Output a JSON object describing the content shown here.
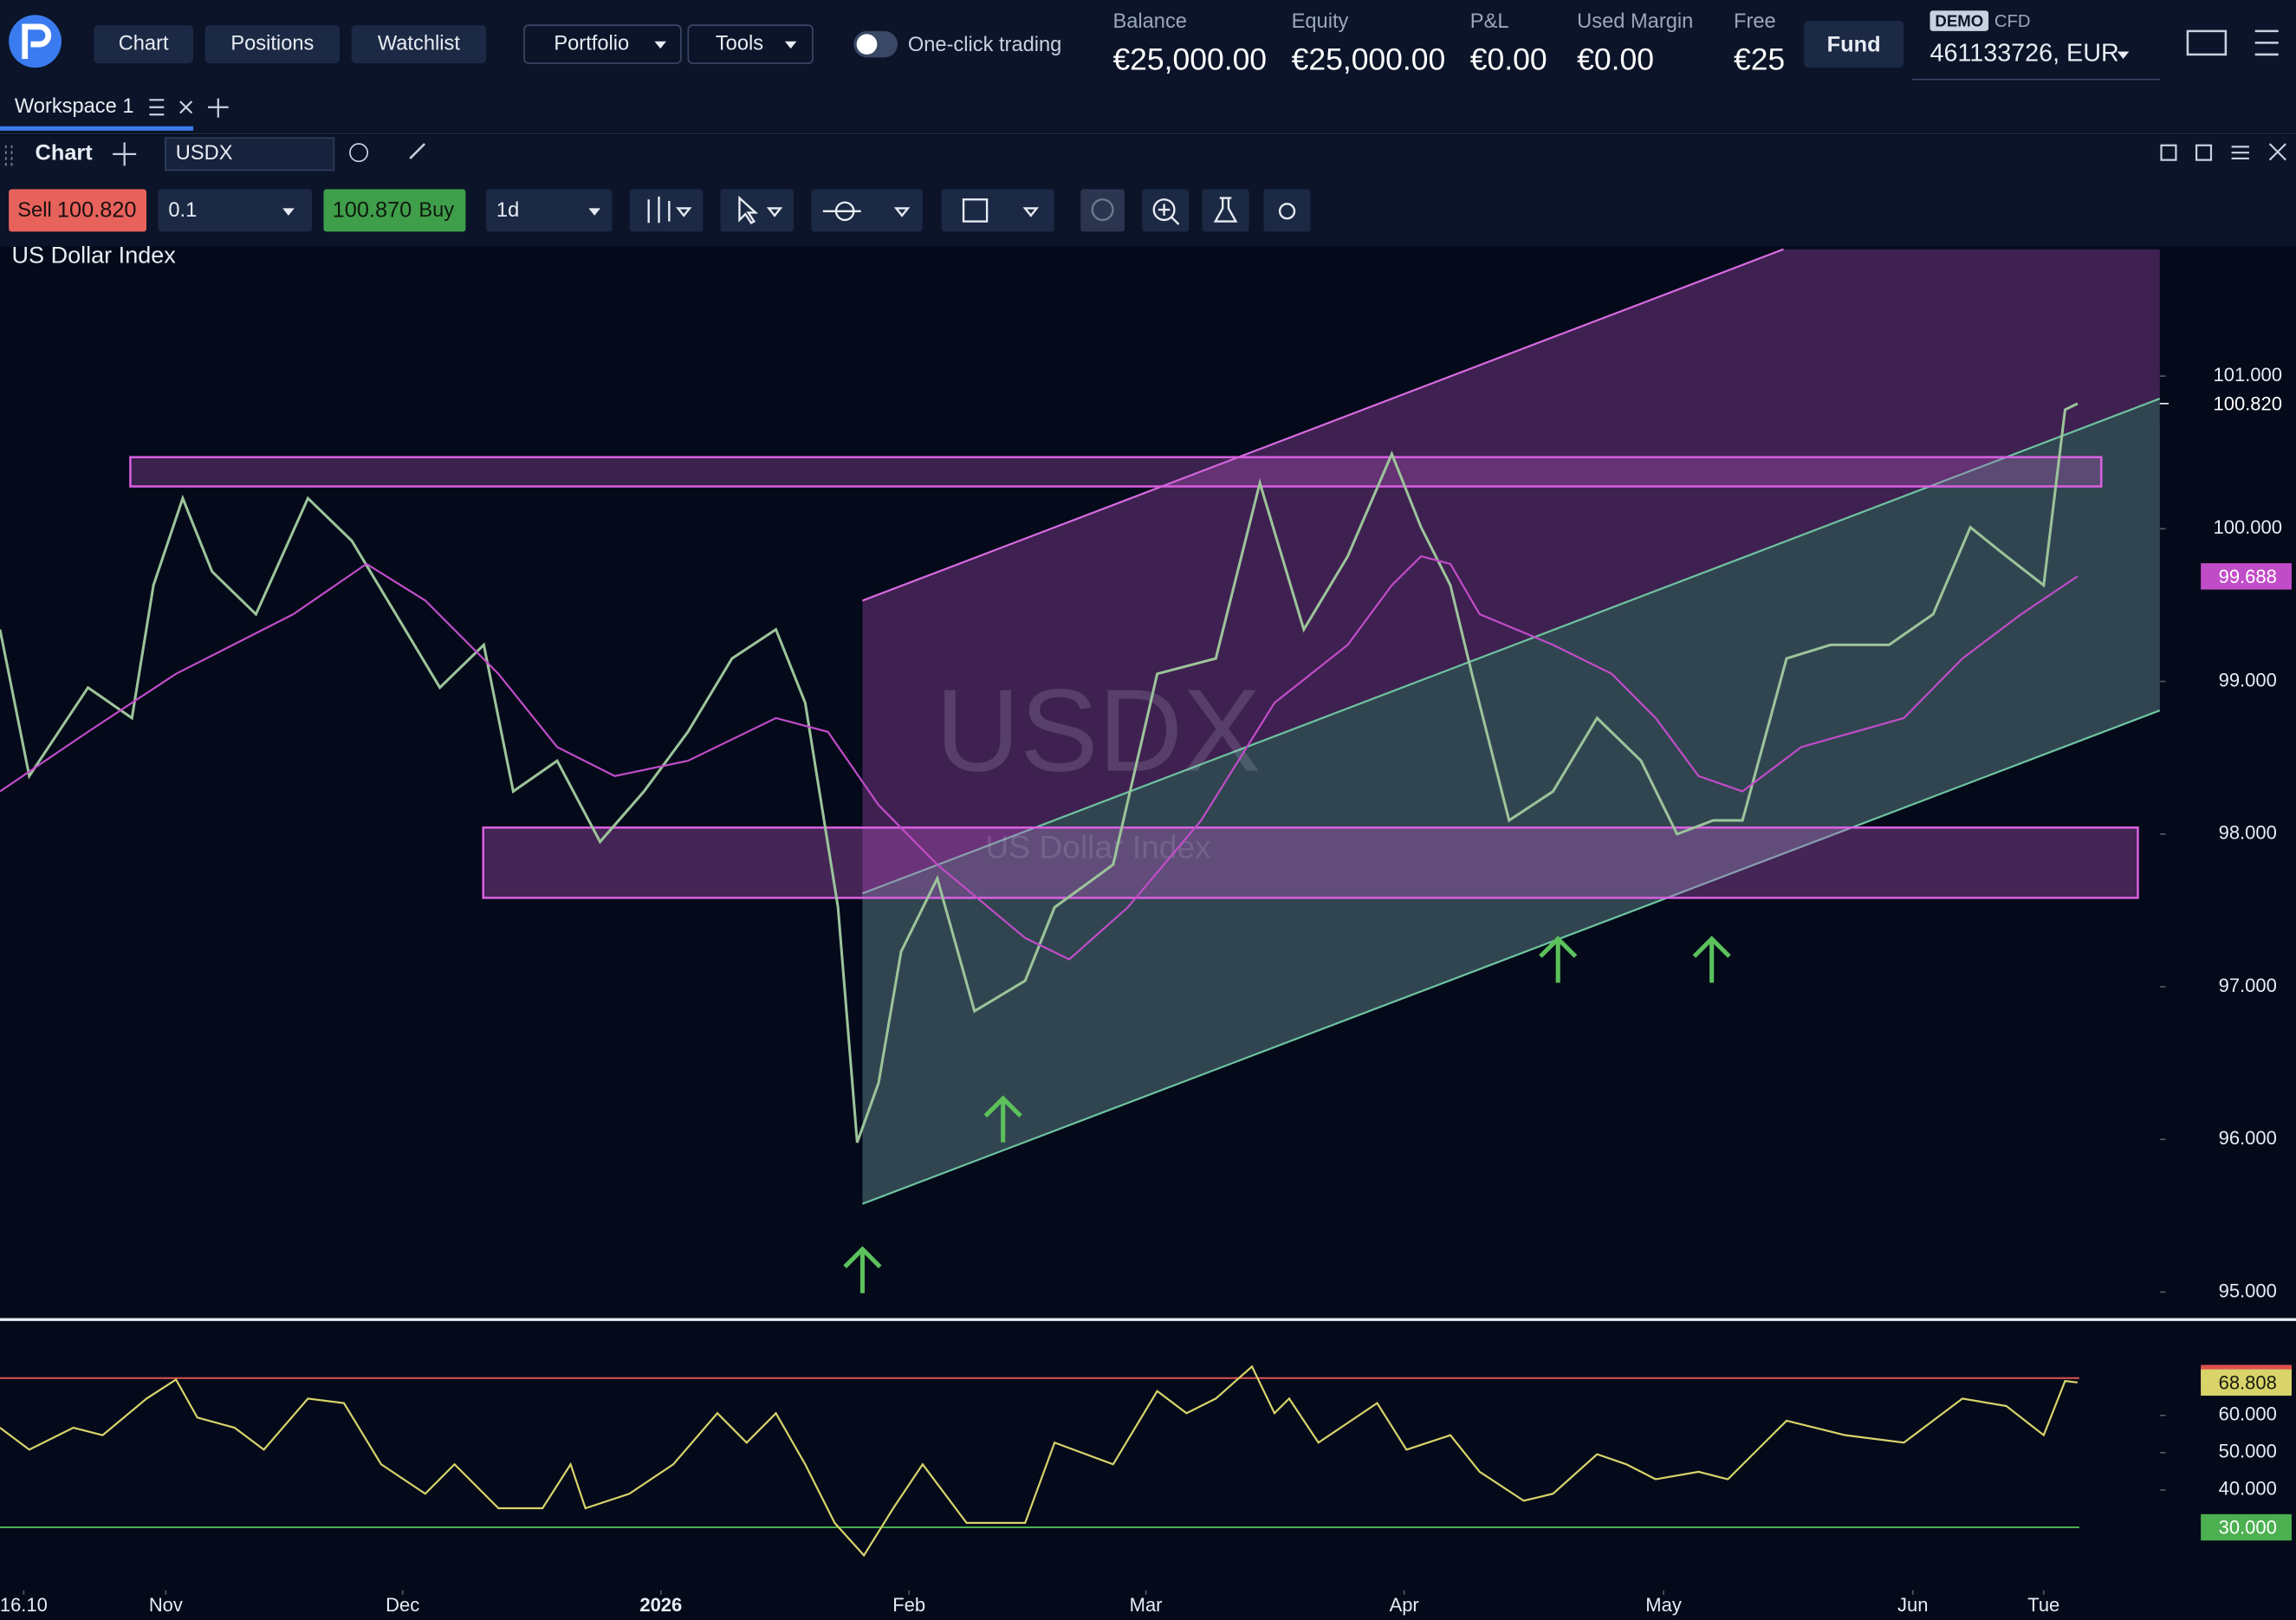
{
  "header": {
    "nav": [
      "Chart",
      "Positions",
      "Watchlist"
    ],
    "menus": [
      "Portfolio",
      "Tools"
    ],
    "toggle": "One-click trading",
    "stats": [
      {
        "label": "Balance",
        "value": "€25,000.00"
      },
      {
        "label": "Equity",
        "value": "€25,000.00"
      },
      {
        "label": "P&L",
        "value": "€0.00"
      },
      {
        "label": "Used Margin",
        "value": "€0.00"
      },
      {
        "label": "Free",
        "value": "€25"
      }
    ],
    "fund": "Fund",
    "badge": "DEMO",
    "account_type": "CFD",
    "account": "461133726, EUR"
  },
  "workspace": {
    "tab": "Workspace 1"
  },
  "panel": {
    "title": "Chart",
    "symbol": "USDX"
  },
  "toolbar": {
    "sell": "Sell",
    "sell_price": "100.820",
    "quantity": "0.1",
    "buy_price": "100.870",
    "buy": "Buy",
    "interval": "1d"
  },
  "chart_data": [
    {
      "type": "line",
      "title": "US Dollar Index",
      "watermark": "USDX",
      "xlim": [
        0,
        191.5
      ],
      "ylim": [
        94.83,
        101.85
      ],
      "yticks": [
        {
          "value": 95,
          "label": "95.000"
        },
        {
          "value": 96,
          "label": "96.000"
        },
        {
          "value": 97,
          "label": "97.000"
        },
        {
          "value": 98,
          "label": "98.000"
        },
        {
          "value": 99,
          "label": "99.000"
        },
        {
          "value": 100,
          "label": "100.000"
        },
        {
          "value": 101,
          "label": "101.000"
        }
      ],
      "series": [
        {
          "color": "#9cc49a",
          "last_label": "100.820",
          "x": [
            0,
            2.6,
            7.8,
            11.7,
            13.6,
            16.2,
            18.8,
            22.7,
            27.3,
            31.2,
            35.1,
            39,
            42.9,
            45.5,
            49.4,
            53.2,
            57.1,
            61,
            64.9,
            68.8,
            71.4,
            74.3,
            76,
            77.9,
            79.9,
            83.1,
            86.4,
            90.9,
            93.5,
            98.7,
            102.6,
            107.8,
            111.7,
            115.6,
            119.5,
            123.4,
            126,
            128.6,
            130.5,
            133.8,
            137.7,
            141.6,
            145.5,
            148.7,
            151.9,
            154.5,
            158.4,
            162.3,
            167.5,
            171.4,
            174.7,
            177.9,
            181.2,
            183.1,
            184.2
          ],
          "values": [
            99.34,
            98.38,
            98.96,
            98.76,
            99.63,
            100.2,
            99.72,
            99.44,
            100.2,
            99.92,
            99.44,
            98.96,
            99.24,
            98.28,
            98.48,
            97.95,
            98.28,
            98.67,
            99.15,
            99.34,
            98.86,
            97.52,
            95.98,
            96.37,
            97.23,
            97.71,
            96.84,
            97.04,
            97.52,
            97.8,
            99.05,
            99.15,
            100.3,
            99.34,
            99.82,
            100.49,
            100.01,
            99.63,
            99.05,
            98.09,
            98.28,
            98.76,
            98.48,
            98,
            98.09,
            98.09,
            99.15,
            99.24,
            99.24,
            99.44,
            100.01,
            99.82,
            99.63,
            100.78,
            100.82
          ]
        },
        {
          "color": "#c14cc8",
          "last_label": "99.688",
          "x": [
            0,
            7.8,
            15.6,
            26,
            32.5,
            37.7,
            44.2,
            49.4,
            54.5,
            61,
            68.8,
            73.4,
            77.9,
            83.1,
            90.9,
            94.8,
            100,
            106.5,
            113,
            119.5,
            123.4,
            126,
            128.6,
            131.2,
            137.7,
            142.9,
            146.8,
            150.6,
            154.5,
            159.7,
            168.8,
            174,
            179.2,
            184.2
          ],
          "values": [
            98.28,
            98.67,
            99.05,
            99.44,
            99.77,
            99.53,
            99.05,
            98.57,
            98.38,
            98.48,
            98.76,
            98.67,
            98.19,
            97.8,
            97.32,
            97.18,
            97.52,
            98.09,
            98.86,
            99.24,
            99.63,
            99.82,
            99.77,
            99.44,
            99.24,
            99.05,
            98.76,
            98.38,
            98.28,
            98.57,
            98.76,
            99.15,
            99.44,
            99.688
          ]
        }
      ]
    },
    {
      "type": "line",
      "color": "#d8d46a",
      "last_label": "68.808",
      "xlim": [
        0,
        191.5
      ],
      "ylim": [
        13.5,
        85.3
      ],
      "x": [
        0,
        2.6,
        6.5,
        9.1,
        13,
        15.6,
        17.5,
        20.8,
        23.4,
        27.3,
        30.5,
        33.8,
        37.7,
        40.3,
        44.2,
        48.1,
        50.6,
        51.9,
        55.8,
        59.7,
        63.6,
        66.2,
        68.8,
        71.4,
        74,
        76.6,
        79.2,
        81.8,
        85.7,
        90.9,
        93.5,
        98.7,
        102.6,
        105.2,
        107.8,
        111,
        113,
        114.3,
        116.9,
        122.1,
        124.7,
        128.6,
        131.2,
        135.1,
        137.7,
        141.6,
        144.2,
        146.8,
        150.6,
        153.2,
        158.4,
        163.6,
        168.8,
        174,
        177.9,
        181.2,
        183.1,
        184.2
      ],
      "values": [
        56.7,
        50.8,
        56.7,
        54.7,
        64.5,
        69.6,
        59.4,
        56.7,
        50.8,
        64.5,
        63.3,
        46.9,
        39,
        46.9,
        35.1,
        35.1,
        46.9,
        35.1,
        39,
        46.9,
        60.6,
        52.7,
        60.6,
        46.9,
        31.2,
        22.5,
        35.1,
        46.9,
        31.2,
        31.2,
        52.7,
        46.9,
        66.5,
        60.6,
        64.5,
        73.1,
        60.6,
        64.5,
        52.7,
        63.3,
        50.8,
        54.7,
        44.9,
        37.1,
        39,
        49.6,
        46.9,
        42.9,
        44.9,
        42.9,
        58.6,
        54.7,
        52.7,
        64.5,
        62.5,
        54.7,
        69.2,
        68.808
      ],
      "yticks": [
        {
          "value": 60,
          "label": "60.000"
        },
        {
          "value": 50,
          "label": "50.000"
        },
        {
          "value": 40,
          "label": "40.000"
        }
      ],
      "levels": [
        {
          "value": 70,
          "label": "70.000",
          "color": "#e0514f"
        },
        {
          "value": 30,
          "label": "30.000",
          "color": "#4caf50"
        }
      ],
      "xticks": [
        {
          "value": 2.1,
          "label": "16.10"
        },
        {
          "value": 14.7,
          "label": "Nov"
        },
        {
          "value": 35.7,
          "label": "Dec"
        },
        {
          "value": 58.6,
          "label": "2026"
        },
        {
          "value": 80.6,
          "label": "Feb"
        },
        {
          "value": 101.6,
          "label": "Mar"
        },
        {
          "value": 124.5,
          "label": "Apr"
        },
        {
          "value": 147.5,
          "label": "May"
        },
        {
          "value": 169.6,
          "label": "Jun"
        },
        {
          "value": 181.2,
          "label": "Tue"
        }
      ]
    }
  ]
}
